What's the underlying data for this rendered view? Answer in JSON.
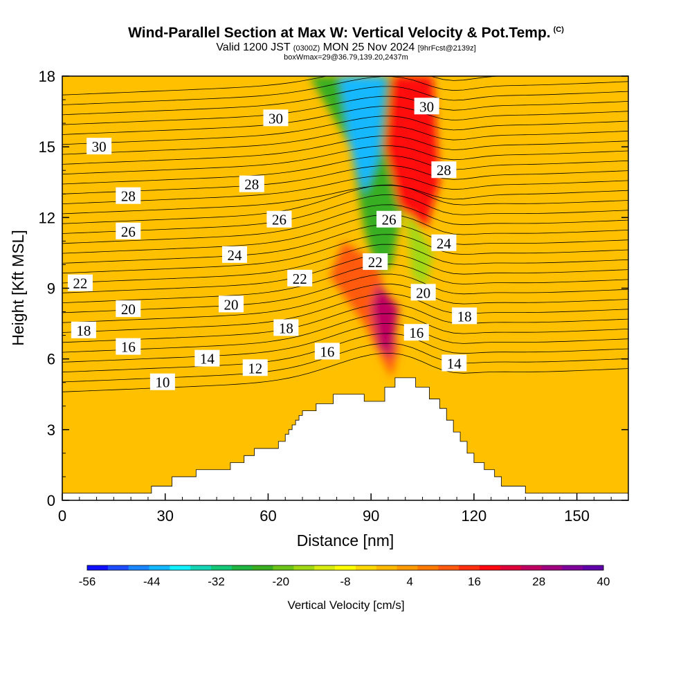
{
  "header": {
    "title": "Wind-Parallel Section at Max W: Vertical Velocity & Pot.Temp.",
    "copyright_mark": "(C)",
    "valid_prefix": "Valid 1200 JST",
    "valid_zulu": "(0300Z)",
    "valid_date": "MON 25 Nov 2024",
    "forecast": "[9hrFcst@2139z]",
    "box_info": "boxWmax=29@36.79,139.20,2437m"
  },
  "colors": {
    "background_fill": "#ffc000",
    "terrain": "#ffffff",
    "contour": "#000000"
  },
  "chart_data": {
    "type": "heatmap",
    "xlabel": "Distance [nm]",
    "ylabel": "Height [Kft MSL]",
    "xlim": [
      0,
      165
    ],
    "ylim": [
      0,
      18
    ],
    "x_ticks": [
      0,
      30,
      60,
      90,
      120,
      150
    ],
    "y_ticks": [
      0,
      3,
      6,
      9,
      12,
      15,
      18
    ],
    "colorbar": {
      "label": "Vertical Velocity [cm/s]",
      "tick_labels": [
        "-56",
        "-44",
        "-32",
        "-20",
        "-8",
        "4",
        "16",
        "28",
        "40"
      ],
      "levels": [
        -56,
        40
      ],
      "colors": [
        "#1010ff",
        "#1e4cff",
        "#1a86ff",
        "#14b8ff",
        "#10f0ff",
        "#14d6b4",
        "#14c878",
        "#20b440",
        "#38ae20",
        "#6cc418",
        "#a0d814",
        "#d8ec10",
        "#ffff00",
        "#ffd800",
        "#ffba00",
        "#ff9a00",
        "#ff7a00",
        "#ff5a10",
        "#ff3010",
        "#ff0810",
        "#e0003a",
        "#c00060",
        "#a00080",
        "#80009c",
        "#6000aa"
      ]
    },
    "terrain": {
      "x": [
        0,
        26,
        26,
        32,
        32,
        39,
        39,
        49,
        49,
        53,
        53,
        56,
        56,
        63,
        63,
        65,
        65,
        66,
        66,
        67,
        67,
        68,
        68,
        69,
        69,
        70,
        70,
        74,
        74,
        79,
        79,
        88,
        88,
        94,
        94,
        97,
        97,
        103,
        103,
        107,
        107,
        110,
        110,
        112,
        112,
        114,
        114,
        116,
        116,
        118,
        118,
        120,
        120,
        123,
        123,
        126,
        126,
        128,
        128,
        135,
        135,
        150,
        150,
        165,
        165
      ],
      "y": [
        0.3,
        0.3,
        0.6,
        0.6,
        1.0,
        1.0,
        1.3,
        1.3,
        1.6,
        1.6,
        1.9,
        1.9,
        2.2,
        2.2,
        2.5,
        2.5,
        2.8,
        2.8,
        3.0,
        3.0,
        3.2,
        3.2,
        3.4,
        3.4,
        3.6,
        3.6,
        3.8,
        3.8,
        4.1,
        4.1,
        4.5,
        4.5,
        4.2,
        4.2,
        4.8,
        4.8,
        5.2,
        5.2,
        4.8,
        4.8,
        4.3,
        4.3,
        3.9,
        3.9,
        3.4,
        3.4,
        2.9,
        2.9,
        2.5,
        2.5,
        2.0,
        2.0,
        1.6,
        1.6,
        1.3,
        1.3,
        1.0,
        1.0,
        0.6,
        0.6,
        0.3,
        0.3,
        0.3,
        0.3,
        0
      ]
    },
    "updrafts": [
      {
        "name": "upper-updraft",
        "values": [
          [
            96,
            18,
            108,
            18,
            110,
            13.5,
            106,
            11.5,
            98,
            12.5,
            94,
            15
          ]
        ],
        "w": 20
      },
      {
        "name": "lower-updraft",
        "values": [
          [
            82,
            11,
            92,
            10,
            98,
            6.5,
            96,
            5.2,
            88,
            7.5,
            78,
            9.5
          ]
        ],
        "w": 12
      },
      {
        "name": "mid-updraft",
        "values": [
          [
            92,
            9.2,
            98,
            8.2,
            96,
            6.0,
            92,
            6.5,
            90,
            8.2
          ]
        ],
        "w": 26
      }
    ],
    "downdrafts": [
      {
        "name": "main-downdraft",
        "values": [
          [
            72,
            18,
            100,
            18,
            100,
            13,
            96,
            10,
            92,
            9.5,
            88,
            11.5,
            84,
            15
          ]
        ],
        "w": -25
      },
      {
        "name": "core-downdraft",
        "values": [
          [
            81,
            18,
            94,
            18,
            92,
            14.5,
            88,
            13,
            84,
            15
          ]
        ],
        "w": -44
      },
      {
        "name": "right-downdraft",
        "values": [
          [
            100,
            12.5,
            108,
            10.5,
            106,
            9.0,
            102,
            9.5
          ]
        ],
        "w": -16
      }
    ],
    "contour_labels": [
      {
        "text": "30",
        "x": 7.5,
        "y": 15.0
      },
      {
        "text": "30",
        "x": 59,
        "y": 16.2
      },
      {
        "text": "30",
        "x": 103,
        "y": 16.7
      },
      {
        "text": "28",
        "x": 16,
        "y": 12.9
      },
      {
        "text": "28",
        "x": 52,
        "y": 13.4
      },
      {
        "text": "28",
        "x": 108,
        "y": 14.0
      },
      {
        "text": "26",
        "x": 16,
        "y": 11.4
      },
      {
        "text": "26",
        "x": 60,
        "y": 11.9
      },
      {
        "text": "26",
        "x": 92,
        "y": 11.9
      },
      {
        "text": "24",
        "x": 47,
        "y": 10.4
      },
      {
        "text": "24",
        "x": 108,
        "y": 10.9
      },
      {
        "text": "22",
        "x": 2,
        "y": 9.2
      },
      {
        "text": "22",
        "x": 66,
        "y": 9.4
      },
      {
        "text": "22",
        "x": 88,
        "y": 10.1
      },
      {
        "text": "20",
        "x": 16,
        "y": 8.1
      },
      {
        "text": "20",
        "x": 46,
        "y": 8.3
      },
      {
        "text": "20",
        "x": 102,
        "y": 8.8
      },
      {
        "text": "18",
        "x": 3,
        "y": 7.2
      },
      {
        "text": "18",
        "x": 62,
        "y": 7.3
      },
      {
        "text": "18",
        "x": 114,
        "y": 7.8
      },
      {
        "text": "16",
        "x": 16,
        "y": 6.5
      },
      {
        "text": "16",
        "x": 74,
        "y": 6.3
      },
      {
        "text": "16",
        "x": 100,
        "y": 7.1
      },
      {
        "text": "14",
        "x": 39,
        "y": 6.0
      },
      {
        "text": "14",
        "x": 111,
        "y": 5.8
      },
      {
        "text": "12",
        "x": 53,
        "y": 5.6
      },
      {
        "text": "10",
        "x": 26,
        "y": 5.0
      }
    ]
  }
}
